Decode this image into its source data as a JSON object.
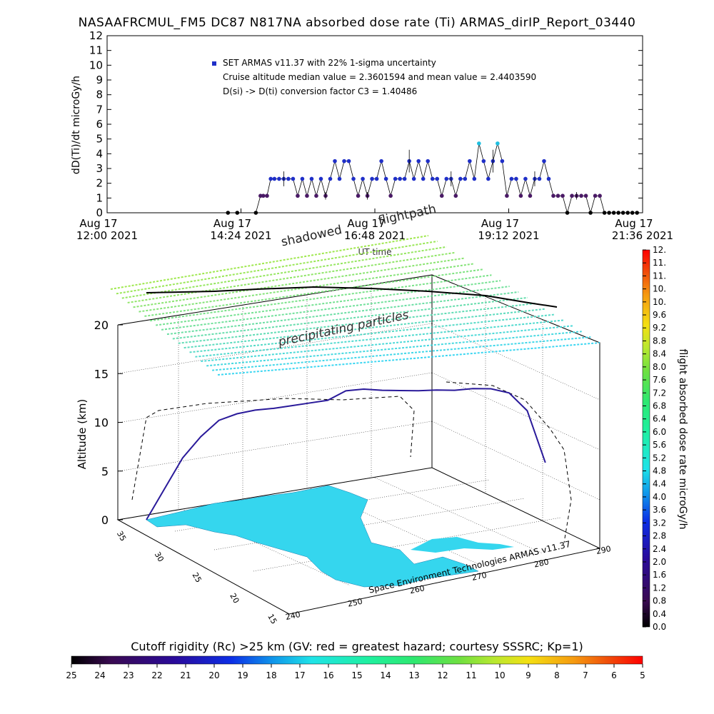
{
  "title": "NASAAFRCMUL_FM5 DC87 N817NA absorbed dose rate (Ti) ARMAS_dirIP_Report_03440",
  "top_plot": {
    "ylabel": "dD(Ti)/dt microGy/h",
    "xlabel": "UT time",
    "legend": {
      "series_label": "SET ARMAS v11.37 with 22% 1-sigma uncertainty",
      "line2": "Cruise altitude median value = 2.3601594 and mean value = 2.4403590",
      "line3": "D(si) -> D(ti) conversion factor C3 = 1.40486"
    },
    "xtick_labels": [
      {
        "l1": "Aug 17",
        "l2": "12:00 2021"
      },
      {
        "l1": "Aug 17",
        "l2": "14:24 2021"
      },
      {
        "l1": "Aug 17",
        "l2": "16:48 2021"
      },
      {
        "l1": "Aug 17",
        "l2": "19:12 2021"
      },
      {
        "l1": "Aug 17",
        "l2": "21:36 2021"
      }
    ],
    "yticks": [
      "0",
      "1",
      "2",
      "3",
      "4",
      "5",
      "6",
      "7",
      "8",
      "9",
      "10",
      "11",
      "12"
    ]
  },
  "chart_data": [
    {
      "type": "scatter",
      "title": "NASAAFRCMUL_FM5 DC87 N817NA absorbed dose rate (Ti) ARMAS_dirIP_Report_03440",
      "xlabel": "UT time",
      "ylabel": "dD(Ti)/dt microGy/h",
      "xlim": [
        0,
        576
      ],
      "x_unit": "minutes after Aug 17 12:00 2021",
      "ylim": [
        0,
        12
      ],
      "grid": false,
      "series": [
        {
          "name": "SET ARMAS v11.37 with 22% 1-sigma uncertainty",
          "x": [
            130,
            140,
            160,
            165,
            168,
            172,
            176,
            180,
            185,
            190,
            195,
            200,
            205,
            210,
            215,
            220,
            225,
            230,
            235,
            240,
            245,
            250,
            255,
            260,
            265,
            270,
            275,
            280,
            285,
            290,
            295,
            300,
            305,
            310,
            315,
            320,
            325,
            330,
            335,
            340,
            345,
            350,
            355,
            360,
            365,
            370,
            375,
            380,
            385,
            390,
            395,
            400,
            405,
            410,
            415,
            420,
            425,
            430,
            435,
            440,
            445,
            450,
            455,
            460,
            465,
            470,
            475,
            480,
            485,
            490,
            495,
            500,
            505,
            510,
            515,
            520,
            525,
            530,
            535,
            540,
            545,
            550,
            555,
            560,
            565,
            570
          ],
          "y": [
            0,
            0,
            0,
            1.15,
            1.15,
            1.15,
            2.3,
            2.3,
            2.3,
            2.3,
            2.3,
            2.3,
            1.15,
            2.3,
            1.15,
            2.3,
            1.15,
            2.3,
            1.15,
            2.3,
            3.5,
            2.3,
            3.5,
            3.5,
            2.3,
            1.15,
            2.3,
            1.15,
            2.3,
            2.3,
            3.5,
            2.3,
            1.15,
            2.3,
            2.3,
            2.3,
            3.5,
            2.3,
            3.5,
            2.3,
            3.5,
            2.3,
            2.3,
            1.15,
            2.3,
            2.3,
            1.15,
            2.3,
            2.3,
            3.5,
            2.3,
            4.7,
            3.5,
            2.3,
            3.5,
            4.7,
            3.5,
            1.15,
            2.3,
            2.3,
            1.15,
            2.3,
            1.15,
            2.3,
            2.3,
            3.5,
            2.3,
            1.15,
            1.15,
            1.15,
            0,
            1.15,
            1.15,
            1.15,
            1.15,
            0,
            1.15,
            1.15,
            0,
            0,
            0,
            0,
            0,
            0,
            0,
            0
          ]
        }
      ]
    },
    {
      "type": "scatter",
      "title": "",
      "xlabel": "",
      "ylabel": "Altitude (km)",
      "zlim": [
        0,
        20
      ],
      "series": [
        {
          "name": "",
          "x": [
            0,
            20,
            40,
            60,
            80,
            100,
            120,
            140,
            160,
            180,
            200,
            220,
            240,
            260,
            280,
            300,
            320,
            340,
            360,
            380,
            400,
            420,
            440
          ],
          "y": [
            0,
            3,
            6,
            8,
            9.5,
            10,
            10.2,
            10.2,
            10.3,
            10.4,
            10.5,
            11.3,
            11.3,
            11,
            10.8,
            10.6,
            10.5,
            10.3,
            10.3,
            10.1,
            9.5,
            7.5,
            2
          ]
        }
      ]
    },
    {
      "type": "heatmap",
      "title": "Cutoff rigidity (Rc) >25 km (GV: red = greatest hazard; courtesy SSSRC; Kp=1)",
      "categories": [
        "25",
        "24",
        "23",
        "22",
        "21",
        "20",
        "19",
        "18",
        "17",
        "16",
        "15",
        "14",
        "13",
        "12",
        "11",
        "10",
        "9",
        "8",
        "7",
        "6",
        "5"
      ],
      "colors": [
        "#000000",
        "#3a0a52",
        "#2a0a9a",
        "#0c2ee6",
        "#0f92ea",
        "#1fe3e8",
        "#1ff0a0",
        "#2ee870",
        "#70e040",
        "#b8e830",
        "#f4e012",
        "#f59a10",
        "#f04d0a",
        "#ff0000"
      ]
    },
    {
      "type": "heatmap",
      "title": "flight absorbed dose rate microGy/h",
      "categories": [
        "0.0",
        "0.4",
        "0.8",
        "1.2",
        "1.6",
        "2.0",
        "2.4",
        "2.8",
        "3.2",
        "3.6",
        "4.0",
        "4.4",
        "4.8",
        "5.2",
        "5.6",
        "6.0",
        "6.4",
        "6.8",
        "7.2",
        "7.6",
        "8.0",
        "8.4",
        "8.8",
        "9.2",
        "9.6",
        "10.",
        "10.",
        "11.",
        "11.",
        "12."
      ],
      "colors": [
        "#000000",
        "#3a0a52",
        "#2a0a9a",
        "#0c2ee6",
        "#0f92ea",
        "#1fe3e8",
        "#1ff0a0",
        "#2ee870",
        "#70e040",
        "#b8e830",
        "#f4e012",
        "#f59a10",
        "#f04d0a",
        "#ff0000"
      ]
    }
  ],
  "three_d": {
    "zlabel": "Altitude (km)",
    "zticks": [
      "0",
      "5",
      "10",
      "15",
      "20"
    ],
    "lat_ticks": [
      "35",
      "30",
      "25",
      "20",
      "15"
    ],
    "lon_ticks": [
      "240",
      "250",
      "260",
      "270",
      "280",
      "290"
    ],
    "credit": "Space Environment Technologies ARMAS v11.37",
    "precipitating_label": "precipitating particles",
    "shadowed_label": "shadowed",
    "flightpath_label": "flightpath"
  },
  "colorbar_bottom": {
    "title": "Cutoff rigidity (Rc) >25 km (GV: red = greatest hazard; courtesy SSSRC; Kp=1)",
    "ticks": [
      "25",
      "24",
      "23",
      "22",
      "21",
      "20",
      "19",
      "18",
      "17",
      "16",
      "15",
      "14",
      "13",
      "12",
      "11",
      "10",
      "9",
      "8",
      "7",
      "6",
      "5"
    ]
  },
  "colorbar_right": {
    "label": "flight absorbed dose rate microGy/h",
    "ticks": [
      "0.0",
      "0.4",
      "0.8",
      "1.2",
      "1.6",
      "2.0",
      "2.4",
      "2.8",
      "3.2",
      "3.6",
      "4.0",
      "4.4",
      "4.8",
      "5.2",
      "5.6",
      "6.0",
      "6.4",
      "6.8",
      "7.2",
      "7.6",
      "8.0",
      "8.4",
      "8.8",
      "9.2",
      "9.6",
      "10.",
      "10.",
      "11.",
      "11.",
      "12."
    ]
  },
  "colors": {
    "marker": "#1f2fc8",
    "marker_high": "#1fbfe0",
    "marker_low": "#4a1a66",
    "precip_sheet": "#40e8c0",
    "land": "#35d6ee",
    "line": "#000000"
  }
}
